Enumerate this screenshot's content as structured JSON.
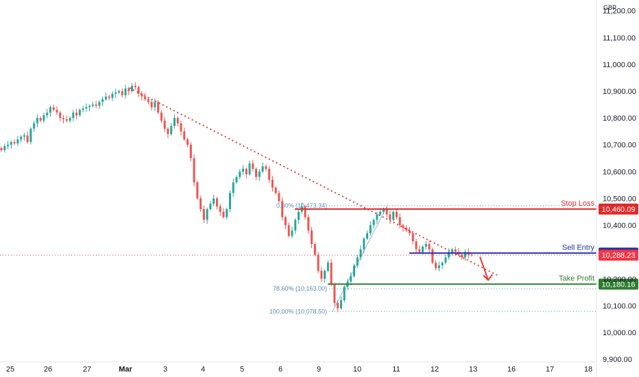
{
  "chart_data": {
    "type": "candlestick",
    "currency": "GBP",
    "x_ticks": [
      "25",
      "26",
      "27",
      "Mar",
      "3",
      "4",
      "5",
      "6",
      "9",
      "10",
      "11",
      "12",
      "13",
      "16",
      "17",
      "18"
    ],
    "y_ticks": [
      "11,200.00",
      "11,100.00",
      "11,000.00",
      "10,900.00",
      "10,800.00",
      "10,700.00",
      "10,600.00",
      "10,500.00",
      "10,400.00",
      "10,200.00",
      "10,100.00",
      "10,000.00",
      "9,900.00"
    ],
    "ylim": [
      9890,
      11240
    ],
    "levels": {
      "stop_loss": {
        "label": "Stop Loss",
        "value": 10460.09,
        "badge": "10,460.09",
        "color": "#e12b2b"
      },
      "sell_entry": {
        "label": "Sell Entry",
        "value": 10295.81,
        "badge": "10,295.81",
        "color": "#1f2fa8"
      },
      "take_profit": {
        "label": "Take Profit",
        "value": 10180.16,
        "badge": "10,180.16",
        "color": "#2e7d32"
      },
      "last_price": {
        "value": 10288.23,
        "badge": "10,288.23",
        "color": "#f23645"
      }
    },
    "fib_levels": [
      {
        "label": "0.00% (10,473.34)",
        "value": 10473.34
      },
      {
        "label": "78.60% (10,163.00)",
        "value": 10163.0
      },
      {
        "label": "100.00% (10,078.50)",
        "value": 10078.5
      }
    ],
    "trendline": {
      "start": {
        "x": 3.1,
        "y": 10912
      },
      "end": {
        "x": 12.0,
        "y": 10265
      }
    },
    "colors": {
      "up": "#26a69a",
      "down": "#ef5350",
      "trend": "#e53935"
    },
    "closes": [
      10680,
      10695,
      10700,
      10710,
      10705,
      10720,
      10730,
      10735,
      10710,
      10760,
      10780,
      10800,
      10790,
      10810,
      10820,
      10840,
      10830,
      10820,
      10800,
      10795,
      10790,
      10800,
      10820,
      10810,
      10830,
      10835,
      10840,
      10845,
      10850,
      10845,
      10860,
      10870,
      10880,
      10875,
      10890,
      10895,
      10900,
      10885,
      10910,
      10900,
      10920,
      10915,
      10890,
      10880,
      10870,
      10860,
      10840,
      10860,
      10820,
      10790,
      10760,
      10740,
      10770,
      10800,
      10780,
      10750,
      10720,
      10700,
      10650,
      10560,
      10500,
      10460,
      10420,
      10460,
      10480,
      10500,
      10470,
      10450,
      10430,
      10460,
      10520,
      10560,
      10580,
      10600,
      10610,
      10590,
      10630,
      10610,
      10580,
      10600,
      10620,
      10610,
      10570,
      10540,
      10520,
      10490,
      10430,
      10400,
      10360,
      10380,
      10420,
      10450,
      10470,
      10430,
      10380,
      10330,
      10290,
      10230,
      10200,
      10230,
      10260,
      10180,
      10110,
      10090,
      10120,
      10170,
      10190,
      10210,
      10250,
      10280,
      10310,
      10350,
      10370,
      10400,
      10420,
      10440,
      10450,
      10460,
      10440,
      10420,
      10450,
      10430,
      10400,
      10390,
      10380,
      10370,
      10340,
      10310,
      10300,
      10320,
      10330,
      10310,
      10260,
      10240,
      10250,
      10260,
      10280,
      10300,
      10310,
      10300,
      10290,
      10280,
      10300,
      10290,
      10288
    ]
  }
}
